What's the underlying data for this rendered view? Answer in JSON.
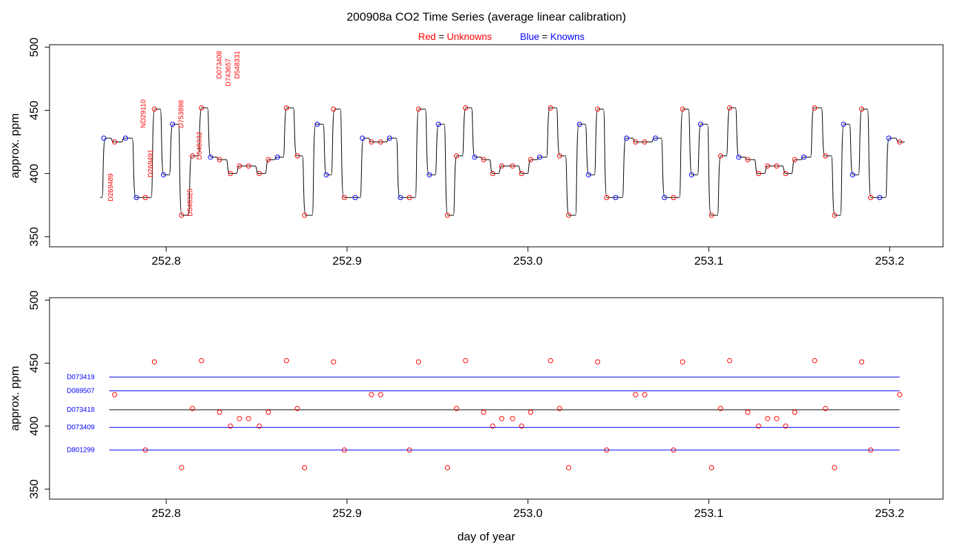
{
  "colors": {
    "unknown": "#ff0000",
    "known": "#0000ff",
    "line": "#000000"
  },
  "chart_data": {
    "type": "scatter",
    "title": "200908a   CO2 Time Series (average linear calibration)",
    "legend": [
      {
        "prefix": "Red",
        "eq": " = ",
        "label": "Unknowns",
        "color": "#ff0000"
      },
      {
        "prefix": "Blue",
        "eq": " = ",
        "label": "Knowns",
        "color": "#0000ff"
      }
    ],
    "xlabel": "day of year",
    "ylabel": "approx. ppm",
    "xlim": [
      252.7355,
      253.2295
    ],
    "ylim": [
      342,
      502
    ],
    "xticks": [
      "252.8",
      "252.9",
      "253.0",
      "253.1",
      "253.2"
    ],
    "yticks": [
      "350",
      "400",
      "450",
      "500"
    ],
    "points": [
      {
        "x": 252.7655,
        "y": 428,
        "k": 1
      },
      {
        "x": 252.7715,
        "y": 425,
        "k": 0
      },
      {
        "x": 252.7775,
        "y": 428,
        "k": 1
      },
      {
        "x": 252.7835,
        "y": 381,
        "k": 1
      },
      {
        "x": 252.7885,
        "y": 381,
        "k": 0
      },
      {
        "x": 252.7935,
        "y": 451,
        "k": 0
      },
      {
        "x": 252.7985,
        "y": 399,
        "k": 1
      },
      {
        "x": 252.8035,
        "y": 439,
        "k": 1
      },
      {
        "x": 252.8085,
        "y": 367,
        "k": 0
      },
      {
        "x": 252.8145,
        "y": 414,
        "k": 0
      },
      {
        "x": 252.8195,
        "y": 452,
        "k": 0
      },
      {
        "x": 252.8245,
        "y": 413,
        "k": 1
      },
      {
        "x": 252.8295,
        "y": 411,
        "k": 0
      },
      {
        "x": 252.8355,
        "y": 400,
        "k": 0
      },
      {
        "x": 252.8405,
        "y": 406,
        "k": 0
      },
      {
        "x": 252.8455,
        "y": 406,
        "k": 0
      },
      {
        "x": 252.8515,
        "y": 400,
        "k": 0
      },
      {
        "x": 252.8565,
        "y": 411,
        "k": 0
      },
      {
        "x": 252.8615,
        "y": 413,
        "k": 1
      },
      {
        "x": 252.8665,
        "y": 452,
        "k": 0
      },
      {
        "x": 252.8725,
        "y": 414,
        "k": 0
      },
      {
        "x": 252.8765,
        "y": 367,
        "k": 0
      },
      {
        "x": 252.8835,
        "y": 439,
        "k": 1
      },
      {
        "x": 252.8885,
        "y": 399,
        "k": 1
      },
      {
        "x": 252.8925,
        "y": 451,
        "k": 0
      },
      {
        "x": 252.8985,
        "y": 381,
        "k": 0
      },
      {
        "x": 252.9045,
        "y": 381,
        "k": 1
      },
      {
        "x": 252.9085,
        "y": 428,
        "k": 1
      },
      {
        "x": 252.9135,
        "y": 425,
        "k": 0
      },
      {
        "x": 252.9185,
        "y": 425,
        "k": 0
      },
      {
        "x": 252.9235,
        "y": 428,
        "k": 1
      },
      {
        "x": 252.9295,
        "y": 381,
        "k": 1
      },
      {
        "x": 252.9345,
        "y": 381,
        "k": 0
      },
      {
        "x": 252.9395,
        "y": 451,
        "k": 0
      },
      {
        "x": 252.9455,
        "y": 399,
        "k": 1
      },
      {
        "x": 252.9505,
        "y": 439,
        "k": 1
      },
      {
        "x": 252.9555,
        "y": 367,
        "k": 0
      },
      {
        "x": 252.9605,
        "y": 414,
        "k": 0
      },
      {
        "x": 252.9655,
        "y": 452,
        "k": 0
      },
      {
        "x": 252.9705,
        "y": 413,
        "k": 1
      },
      {
        "x": 252.9755,
        "y": 411,
        "k": 0
      },
      {
        "x": 252.9805,
        "y": 400,
        "k": 0
      },
      {
        "x": 252.9855,
        "y": 406,
        "k": 0
      },
      {
        "x": 252.9915,
        "y": 406,
        "k": 0
      },
      {
        "x": 252.9965,
        "y": 400,
        "k": 0
      },
      {
        "x": 253.0015,
        "y": 411,
        "k": 0
      },
      {
        "x": 253.0065,
        "y": 413,
        "k": 1
      },
      {
        "x": 253.0125,
        "y": 452,
        "k": 0
      },
      {
        "x": 253.0175,
        "y": 414,
        "k": 0
      },
      {
        "x": 253.0225,
        "y": 367,
        "k": 0
      },
      {
        "x": 253.0285,
        "y": 439,
        "k": 1
      },
      {
        "x": 253.0335,
        "y": 399,
        "k": 1
      },
      {
        "x": 253.0385,
        "y": 451,
        "k": 0
      },
      {
        "x": 253.0435,
        "y": 381,
        "k": 0
      },
      {
        "x": 253.0485,
        "y": 381,
        "k": 1
      },
      {
        "x": 253.0545,
        "y": 428,
        "k": 1
      },
      {
        "x": 253.0595,
        "y": 425,
        "k": 0
      },
      {
        "x": 253.0645,
        "y": 425,
        "k": 0
      },
      {
        "x": 253.0705,
        "y": 428,
        "k": 1
      },
      {
        "x": 253.0755,
        "y": 381,
        "k": 1
      },
      {
        "x": 253.0805,
        "y": 381,
        "k": 0
      },
      {
        "x": 253.0855,
        "y": 451,
        "k": 0
      },
      {
        "x": 253.0905,
        "y": 399,
        "k": 1
      },
      {
        "x": 253.0955,
        "y": 439,
        "k": 1
      },
      {
        "x": 253.1015,
        "y": 367,
        "k": 0
      },
      {
        "x": 253.1065,
        "y": 414,
        "k": 0
      },
      {
        "x": 253.1115,
        "y": 452,
        "k": 0
      },
      {
        "x": 253.1165,
        "y": 413,
        "k": 1
      },
      {
        "x": 253.1215,
        "y": 411,
        "k": 0
      },
      {
        "x": 253.1275,
        "y": 400,
        "k": 0
      },
      {
        "x": 253.1325,
        "y": 406,
        "k": 0
      },
      {
        "x": 253.1375,
        "y": 406,
        "k": 0
      },
      {
        "x": 253.1425,
        "y": 400,
        "k": 0
      },
      {
        "x": 253.1475,
        "y": 411,
        "k": 0
      },
      {
        "x": 253.1525,
        "y": 413,
        "k": 1
      },
      {
        "x": 253.1585,
        "y": 452,
        "k": 0
      },
      {
        "x": 253.1645,
        "y": 414,
        "k": 0
      },
      {
        "x": 253.1695,
        "y": 367,
        "k": 0
      },
      {
        "x": 253.1745,
        "y": 439,
        "k": 1
      },
      {
        "x": 253.1795,
        "y": 399,
        "k": 1
      },
      {
        "x": 253.1845,
        "y": 451,
        "k": 0
      },
      {
        "x": 253.1895,
        "y": 381,
        "k": 0
      },
      {
        "x": 253.1945,
        "y": 381,
        "k": 1
      },
      {
        "x": 253.1995,
        "y": 428,
        "k": 1
      },
      {
        "x": 253.2055,
        "y": 425,
        "k": 0
      }
    ],
    "annotations": [
      {
        "label": "D269489",
        "x": 252.7705,
        "y": 378
      },
      {
        "label": "ND29110",
        "x": 252.7885,
        "y": 436
      },
      {
        "label": "D269491",
        "x": 252.7925,
        "y": 397
      },
      {
        "label": "D753898",
        "x": 252.8095,
        "y": 436
      },
      {
        "label": "D548325",
        "x": 252.8145,
        "y": 366
      },
      {
        "label": "D548332",
        "x": 252.8195,
        "y": 411
      },
      {
        "label": "D073408",
        "x": 252.8305,
        "y": 475
      },
      {
        "label": "D743657",
        "x": 252.8355,
        "y": 469
      },
      {
        "label": "D548331",
        "x": 252.8405,
        "y": 475
      }
    ],
    "references": [
      {
        "label": "D073419",
        "y": 439,
        "color": "#0000ff"
      },
      {
        "label": "D089507",
        "y": 428,
        "color": "#0000ff"
      },
      {
        "label": "D073418",
        "y": 413,
        "color": "#000000"
      },
      {
        "label": "D073409",
        "y": 399,
        "color": "#0000ff"
      },
      {
        "label": "D801299",
        "y": 381,
        "color": "#0000ff"
      }
    ],
    "ref_xrange": [
      252.7685,
      253.2055
    ]
  }
}
